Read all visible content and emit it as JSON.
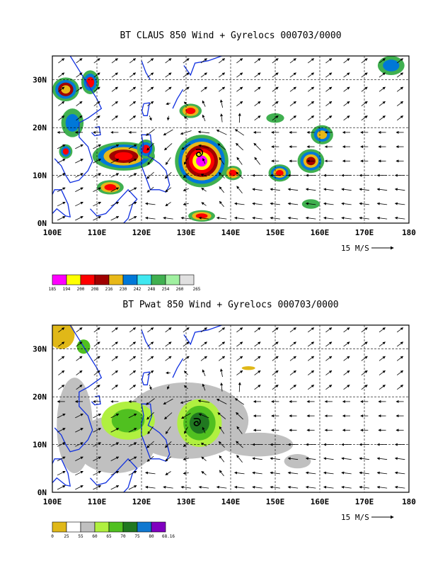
{
  "chart_data": [
    {
      "type": "heatmap",
      "title": "BT CLAUS 850 Wind + Gyrelocs 000703/0000",
      "xlim": [
        100,
        180
      ],
      "ylim": [
        0,
        35
      ],
      "x_ticks": [
        {
          "value": 100,
          "label": "100E"
        },
        {
          "value": 110,
          "label": "110E"
        },
        {
          "value": 120,
          "label": "120E"
        },
        {
          "value": 130,
          "label": "130E"
        },
        {
          "value": 140,
          "label": "140E"
        },
        {
          "value": 150,
          "label": "150E"
        },
        {
          "value": 160,
          "label": "160E"
        },
        {
          "value": 170,
          "label": "170E"
        },
        {
          "value": 180,
          "label": "180"
        }
      ],
      "y_ticks": [
        {
          "value": 0,
          "label": "0N"
        },
        {
          "value": 10,
          "label": "10N"
        },
        {
          "value": 20,
          "label": "20N"
        },
        {
          "value": 30,
          "label": "30N"
        }
      ],
      "grid": true,
      "reference_vector_label": "15 M/S",
      "legend": {
        "labels": [
          "185",
          "194",
          "200",
          "208",
          "216",
          "230",
          "242",
          "248",
          "254",
          "260",
          "265"
        ],
        "colors": [
          "#ff00ff",
          "#ffff00",
          "#ff0000",
          "#a00000",
          "#e8b818",
          "#0078d8",
          "#40e8f0",
          "#40b050",
          "#a0f0a0",
          "#e0e0e0"
        ]
      },
      "gyre_location": {
        "lon": 133,
        "lat": 14.5
      },
      "field_blobs": [
        {
          "lon": 103,
          "lat": 28,
          "rx": 3,
          "ry": 2.5,
          "levels": [
            "#40b050",
            "#0078d8",
            "#a00000",
            "#e8b818"
          ]
        },
        {
          "lon": 108.5,
          "lat": 29.5,
          "rx": 2,
          "ry": 2.5,
          "levels": [
            "#40b050",
            "#0078d8",
            "#ff0000"
          ]
        },
        {
          "lon": 104.5,
          "lat": 21,
          "rx": 2.5,
          "ry": 3,
          "levels": [
            "#40b050",
            "#0078d8"
          ]
        },
        {
          "lon": 103,
          "lat": 15,
          "rx": 1.5,
          "ry": 1.5,
          "levels": [
            "#40b050",
            "#0078d8",
            "#ff0000"
          ]
        },
        {
          "lon": 116,
          "lat": 14,
          "rx": 7,
          "ry": 3,
          "levels": [
            "#40b050",
            "#0078d8",
            "#e8b818",
            "#a00000",
            "#ff0000"
          ]
        },
        {
          "lon": 113,
          "lat": 7.5,
          "rx": 3,
          "ry": 1.5,
          "levels": [
            "#40b050",
            "#e8b818",
            "#ff0000"
          ]
        },
        {
          "lon": 121,
          "lat": 15.5,
          "rx": 2,
          "ry": 2,
          "levels": [
            "#40b050",
            "#0078d8",
            "#ff0000"
          ]
        },
        {
          "lon": 131,
          "lat": 23.5,
          "rx": 2.5,
          "ry": 1.5,
          "levels": [
            "#40b050",
            "#e8b818",
            "#ff0000"
          ]
        },
        {
          "lon": 133.5,
          "lat": 13,
          "rx": 6,
          "ry": 5.5,
          "levels": [
            "#40b050",
            "#0078d8",
            "#e8b818",
            "#a00000",
            "#ff0000",
            "#ffff00",
            "#ff00ff"
          ]
        },
        {
          "lon": 140.5,
          "lat": 10.5,
          "rx": 2,
          "ry": 1.5,
          "levels": [
            "#40b050",
            "#e8b818",
            "#ff0000"
          ]
        },
        {
          "lon": 133.5,
          "lat": 1.5,
          "rx": 3,
          "ry": 1.2,
          "levels": [
            "#40b050",
            "#e8b818",
            "#ff0000"
          ]
        },
        {
          "lon": 151,
          "lat": 10.5,
          "rx": 2.5,
          "ry": 1.8,
          "levels": [
            "#40b050",
            "#0078d8",
            "#e8b818",
            "#ff0000"
          ]
        },
        {
          "lon": 158,
          "lat": 13,
          "rx": 3,
          "ry": 2.5,
          "levels": [
            "#40b050",
            "#0078d8",
            "#e8b818",
            "#a00000"
          ]
        },
        {
          "lon": 160.5,
          "lat": 18.5,
          "rx": 2.5,
          "ry": 2,
          "levels": [
            "#40b050",
            "#0078d8",
            "#e8b818"
          ]
        },
        {
          "lon": 176,
          "lat": 33,
          "rx": 3,
          "ry": 2,
          "levels": [
            "#40b050",
            "#0078d8"
          ]
        },
        {
          "lon": 150,
          "lat": 22,
          "rx": 2,
          "ry": 1,
          "levels": [
            "#40b050"
          ]
        },
        {
          "lon": 158,
          "lat": 4,
          "rx": 2,
          "ry": 1,
          "levels": [
            "#40b050"
          ]
        }
      ]
    },
    {
      "type": "heatmap",
      "title": "BT Pwat 850 Wind + Gyrelocs 000703/0000",
      "xlim": [
        100,
        180
      ],
      "ylim": [
        0,
        35
      ],
      "x_ticks": [
        {
          "value": 100,
          "label": "100E"
        },
        {
          "value": 110,
          "label": "110E"
        },
        {
          "value": 120,
          "label": "120E"
        },
        {
          "value": 130,
          "label": "130E"
        },
        {
          "value": 140,
          "label": "140E"
        },
        {
          "value": 150,
          "label": "150E"
        },
        {
          "value": 160,
          "label": "160E"
        },
        {
          "value": 170,
          "label": "170E"
        },
        {
          "value": 180,
          "label": "180"
        }
      ],
      "y_ticks": [
        {
          "value": 0,
          "label": "0N"
        },
        {
          "value": 10,
          "label": "10N"
        },
        {
          "value": 20,
          "label": "20N"
        },
        {
          "value": 30,
          "label": "30N"
        }
      ],
      "grid": true,
      "reference_vector_label": "15 M/S",
      "legend": {
        "labels": [
          "0",
          "25",
          "55",
          "60",
          "65",
          "70",
          "75",
          "80",
          "68.16"
        ],
        "colors": [
          "#e0b818",
          "#ffffff",
          "#c0c0c0",
          "#b0f040",
          "#50c020",
          "#207820",
          "#1078d0",
          "#8000c0"
        ]
      },
      "gyre_location": {
        "lon": 132.5,
        "lat": 14.5
      },
      "field_blobs": [
        {
          "lon": 102,
          "lat": 33,
          "rx": 3,
          "ry": 3,
          "levels": [
            "#e0b818"
          ]
        },
        {
          "lon": 107,
          "lat": 30.5,
          "rx": 1.5,
          "ry": 1.5,
          "levels": [
            "#50c020"
          ]
        },
        {
          "lon": 130,
          "lat": 15,
          "rx": 14,
          "ry": 8,
          "levels": [
            "#c0c0c0"
          ]
        },
        {
          "lon": 114,
          "lat": 10,
          "rx": 9,
          "ry": 6,
          "levels": [
            "#c0c0c0"
          ]
        },
        {
          "lon": 105,
          "lat": 14,
          "rx": 4,
          "ry": 10,
          "levels": [
            "#c0c0c0"
          ]
        },
        {
          "lon": 146,
          "lat": 10,
          "rx": 8,
          "ry": 2.5,
          "levels": [
            "#c0c0c0"
          ]
        },
        {
          "lon": 155,
          "lat": 6.5,
          "rx": 3,
          "ry": 1.5,
          "levels": [
            "#c0c0c0"
          ]
        },
        {
          "lon": 117,
          "lat": 15,
          "rx": 6,
          "ry": 4,
          "levels": [
            "#b0f040",
            "#50c020"
          ]
        },
        {
          "lon": 133,
          "lat": 14.5,
          "rx": 5,
          "ry": 5,
          "levels": [
            "#b0f040",
            "#50c020",
            "#207820"
          ]
        },
        {
          "lon": 144,
          "lat": 26,
          "rx": 1.5,
          "ry": 0.4,
          "levels": [
            "#e0b818"
          ]
        }
      ]
    }
  ]
}
